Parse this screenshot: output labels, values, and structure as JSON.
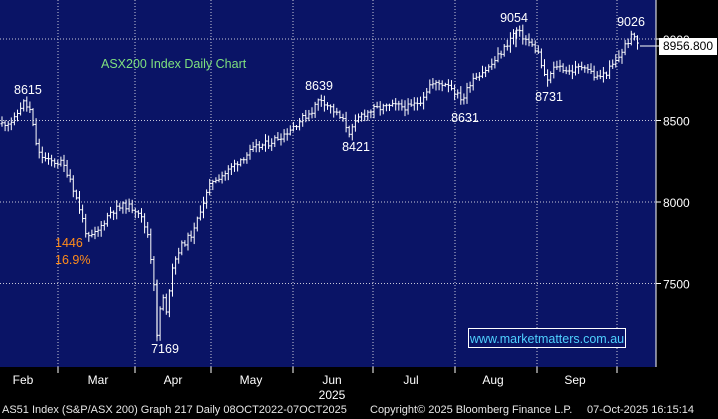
{
  "chart_data": {
    "type": "bar",
    "title": "ASX200 Index Daily Chart",
    "ylim": [
      7000,
      9180
    ],
    "y_ticks": [
      7500,
      8000,
      8500,
      9000
    ],
    "x_tick_labels": [
      "Feb",
      "Mar",
      "Apr",
      "May",
      "Jun",
      "Jul",
      "Aug",
      "Sep"
    ],
    "x_year_label": "2025",
    "grid": true,
    "last_price": "8956.800",
    "annotations": [
      {
        "label": "8615",
        "color": "#ffffff"
      },
      {
        "label": "7169",
        "color": "#ffffff"
      },
      {
        "label": "8639",
        "color": "#ffffff"
      },
      {
        "label": "8421",
        "color": "#ffffff"
      },
      {
        "label": "8631",
        "color": "#ffffff"
      },
      {
        "label": "9054",
        "color": "#ffffff"
      },
      {
        "label": "8731",
        "color": "#ffffff"
      },
      {
        "label": "9026",
        "color": "#ffffff"
      },
      {
        "label": "1446",
        "color": "#ff8c1a"
      },
      {
        "label": "16.9%",
        "color": "#ff8c1a"
      }
    ],
    "key_points": [
      {
        "date": "Feb",
        "value": 8615
      },
      {
        "date": "Apr",
        "value": 7169
      },
      {
        "date": "Jun",
        "value": 8639
      },
      {
        "date": "Jun",
        "value": 8421
      },
      {
        "date": "Jul",
        "value": 8631
      },
      {
        "date": "Aug",
        "value": 9054
      },
      {
        "date": "Aug",
        "value": 8731
      },
      {
        "date": "Oct",
        "value": 9026
      }
    ]
  },
  "watermark": "www.marketmatters.com.au",
  "footer": {
    "left": "AS51 Index (S&P/ASX 200) Graph 217 Daily 08OCT2022-07OCT2025",
    "center": "Copyright© 2025 Bloomberg Finance L.P.",
    "right": "07-Oct-2025 16:15:14"
  }
}
